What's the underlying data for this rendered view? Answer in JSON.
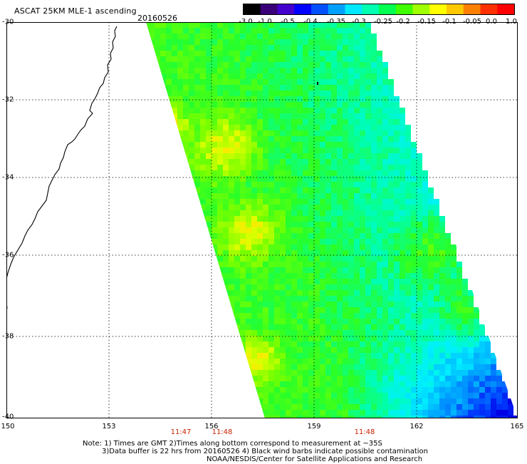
{
  "header": {
    "title": "ASCAT 25KM MLE-1 ascending",
    "date": "20160526"
  },
  "colorbar": {
    "labels": [
      "-3.0",
      "-1.0",
      "-0.5",
      "-0.4",
      "-0.35",
      "-0.3",
      "-0.25",
      "-0.2",
      "-0.15",
      "-0.1",
      "-0.05",
      "0.0",
      "1.0"
    ],
    "colors": [
      "#000000",
      "#3a0078",
      "#4400cc",
      "#0000ff",
      "#0050ff",
      "#00a0ff",
      "#00e8ff",
      "#00ffb0",
      "#00ff50",
      "#40ff00",
      "#a0ff00",
      "#ffff00",
      "#ffc800",
      "#ff8000",
      "#ff3000",
      "#ff0000"
    ]
  },
  "map": {
    "lat_labels": [
      "-30",
      "-32",
      "-34",
      "-36",
      "-38",
      "-40"
    ],
    "lon_labels": [
      "150",
      "153",
      "156",
      "159",
      "162",
      "165"
    ],
    "time_labels": [
      "11:47",
      "11:48",
      "11:48"
    ],
    "lat_range": [
      -40,
      -30
    ],
    "lon_range": [
      150,
      165
    ],
    "grid": true
  },
  "notes": {
    "line1": "Note: 1) Times are GMT 2)Times along bottom correspond to measurement at ~35S",
    "line2": "3)Data buffer is 22 hrs from 20160526 4) Black wind barbs indicate possible contamination",
    "line3": "NOAA/NESDIS/Center for Satellite Applications and Research"
  }
}
